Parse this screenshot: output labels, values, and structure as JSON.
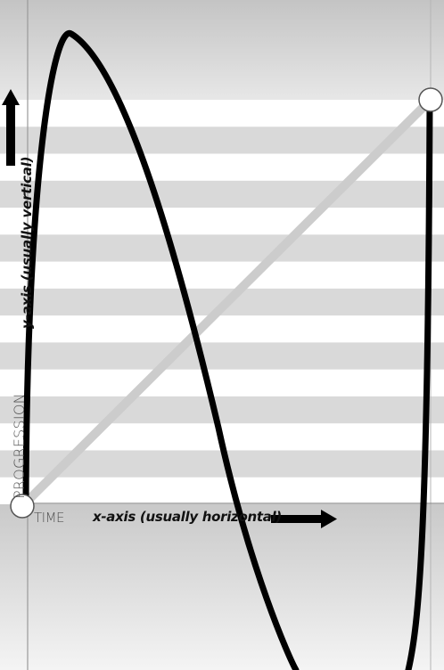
{
  "labels": {
    "time": "TIME",
    "x_axis": "x-axis (usually horizontal)",
    "progression": "PROGRESSION",
    "y_axis": "y-axis (usually vertical)"
  },
  "colors": {
    "band_gray": "#d9d9d9",
    "band_white": "#ffffff",
    "curve": "#000000",
    "diagonal": "#cccccc",
    "axis_arrow": "#000000",
    "node_fill": "#ffffff",
    "node_stroke": "#555555"
  },
  "icons": [
    "right-arrow-icon",
    "up-arrow-icon"
  ]
}
